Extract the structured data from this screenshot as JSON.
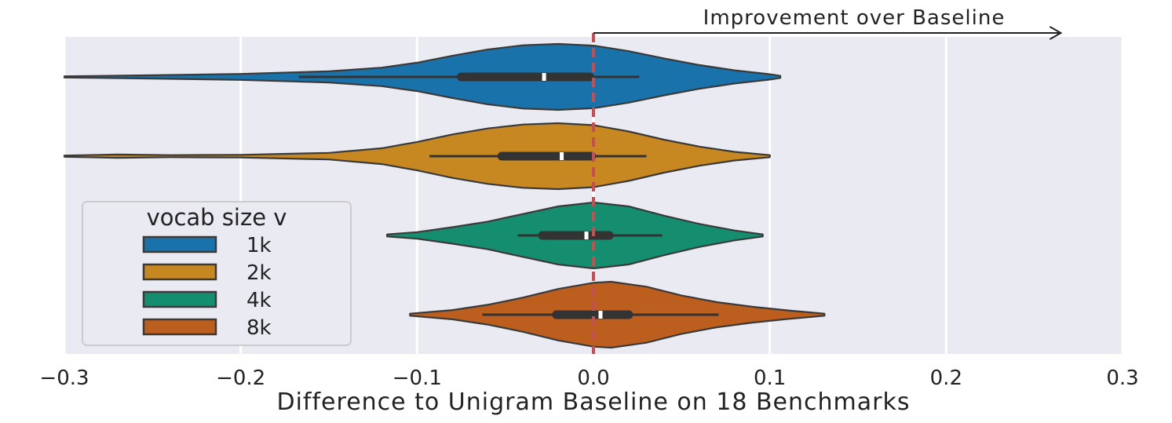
{
  "chart_data": {
    "type": "violin",
    "orientation": "horizontal",
    "xlabel": "Difference to Unigram Baseline on 18 Benchmarks",
    "ylabel": "",
    "xlim": [
      -0.3,
      0.3
    ],
    "x_ticks": [
      "−0.3",
      "−0.2",
      "−0.1",
      "0.0",
      "0.1",
      "0.2",
      "0.3"
    ],
    "grid": true,
    "baseline": {
      "x": 0.0,
      "style": "dashed",
      "color": "#c44e52"
    },
    "annotation": {
      "text": "Improvement over Baseline",
      "arrow_from_x": 0.0,
      "arrow_to_x": 0.265
    },
    "legend": {
      "title": "vocab size v",
      "placement": "lower-left"
    },
    "series": [
      {
        "name": "1k",
        "color": "#1a72aa",
        "min": -0.3,
        "whisker_low": -0.167,
        "q1": -0.075,
        "median": -0.028,
        "q3": -0.002,
        "whisker_high": 0.026,
        "max": 0.106,
        "density": [
          [
            -0.3,
            0.02
          ],
          [
            -0.25,
            0.05
          ],
          [
            -0.2,
            0.09
          ],
          [
            -0.15,
            0.17
          ],
          [
            -0.12,
            0.28
          ],
          [
            -0.1,
            0.43
          ],
          [
            -0.08,
            0.64
          ],
          [
            -0.06,
            0.83
          ],
          [
            -0.04,
            0.96
          ],
          [
            -0.02,
            1.0
          ],
          [
            0.0,
            0.95
          ],
          [
            0.02,
            0.78
          ],
          [
            0.04,
            0.56
          ],
          [
            0.06,
            0.36
          ],
          [
            0.08,
            0.2
          ],
          [
            0.1,
            0.08
          ],
          [
            0.106,
            0.03
          ]
        ]
      },
      {
        "name": "2k",
        "color": "#c88821",
        "min": -0.3,
        "whisker_low": -0.093,
        "q1": -0.052,
        "median": -0.018,
        "q3": -0.001,
        "whisker_high": 0.03,
        "max": 0.1,
        "density": [
          [
            -0.3,
            0.02
          ],
          [
            -0.27,
            0.05
          ],
          [
            -0.24,
            0.03
          ],
          [
            -0.2,
            0.04
          ],
          [
            -0.15,
            0.1
          ],
          [
            -0.12,
            0.24
          ],
          [
            -0.1,
            0.43
          ],
          [
            -0.08,
            0.66
          ],
          [
            -0.06,
            0.84
          ],
          [
            -0.04,
            0.96
          ],
          [
            -0.02,
            1.0
          ],
          [
            0.0,
            0.94
          ],
          [
            0.02,
            0.75
          ],
          [
            0.04,
            0.5
          ],
          [
            0.06,
            0.29
          ],
          [
            0.08,
            0.13
          ],
          [
            0.1,
            0.03
          ]
        ]
      },
      {
        "name": "4k",
        "color": "#148e6e",
        "min": -0.117,
        "whisker_low": -0.043,
        "q1": -0.029,
        "median": -0.004,
        "q3": 0.009,
        "whisker_high": 0.039,
        "max": 0.096,
        "density": [
          [
            -0.117,
            0.03
          ],
          [
            -0.1,
            0.1
          ],
          [
            -0.08,
            0.25
          ],
          [
            -0.06,
            0.42
          ],
          [
            -0.04,
            0.65
          ],
          [
            -0.02,
            0.88
          ],
          [
            0.0,
            1.0
          ],
          [
            0.02,
            0.88
          ],
          [
            0.04,
            0.6
          ],
          [
            0.06,
            0.35
          ],
          [
            0.08,
            0.15
          ],
          [
            0.096,
            0.03
          ]
        ]
      },
      {
        "name": "8k",
        "color": "#bc5e1e",
        "min": -0.104,
        "whisker_low": -0.063,
        "q1": -0.021,
        "median": 0.004,
        "q3": 0.02,
        "whisker_high": 0.071,
        "max": 0.131,
        "density": [
          [
            -0.104,
            0.03
          ],
          [
            -0.08,
            0.14
          ],
          [
            -0.06,
            0.3
          ],
          [
            -0.04,
            0.52
          ],
          [
            -0.02,
            0.78
          ],
          [
            0.0,
            0.97
          ],
          [
            0.01,
            1.0
          ],
          [
            0.03,
            0.85
          ],
          [
            0.05,
            0.58
          ],
          [
            0.07,
            0.38
          ],
          [
            0.09,
            0.24
          ],
          [
            0.11,
            0.13
          ],
          [
            0.131,
            0.03
          ]
        ]
      }
    ]
  }
}
